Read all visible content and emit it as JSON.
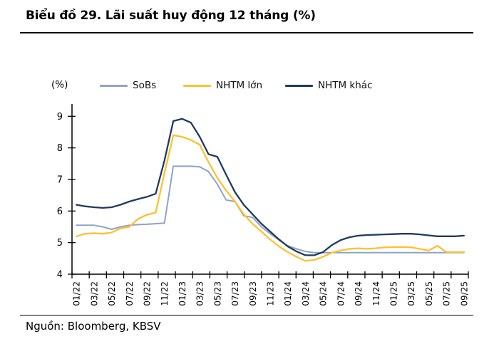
{
  "header": {
    "title": "Biểu đồ 29. Lãi suất huy động 12 tháng (%)"
  },
  "footer": {
    "source": "Nguồn: Bloomberg, KBSV"
  },
  "chart_data": {
    "type": "line",
    "title": "Biểu đồ 29. Lãi suất huy động 12 tháng (%)",
    "unit_label": "(%)",
    "xlabel": "",
    "ylabel": "(%)",
    "ylim": [
      4,
      9
    ],
    "yticks": [
      4,
      5,
      6,
      7,
      8,
      9
    ],
    "grid": false,
    "legend_position": "top",
    "x_tick_label_step": 2,
    "categories": [
      "01/22",
      "02/22",
      "03/22",
      "04/22",
      "05/22",
      "06/22",
      "07/22",
      "08/22",
      "09/22",
      "10/22",
      "11/22",
      "12/22",
      "01/23",
      "02/23",
      "03/23",
      "04/23",
      "05/23",
      "06/23",
      "07/23",
      "08/23",
      "09/23",
      "10/23",
      "11/23",
      "12/23",
      "01/24",
      "02/24",
      "03/24",
      "04/24",
      "05/24",
      "06/24",
      "07/24",
      "08/24",
      "09/24",
      "10/24",
      "11/24",
      "12/24",
      "01/25",
      "02/25",
      "03/25",
      "04/25",
      "05/25",
      "06/25",
      "07/25",
      "08/25",
      "09/25"
    ],
    "series": [
      {
        "name": "SoBs",
        "color": "#8FA3C8",
        "values": [
          5.55,
          5.55,
          5.55,
          5.5,
          5.42,
          5.5,
          5.55,
          5.57,
          5.58,
          5.6,
          5.62,
          7.42,
          7.42,
          7.42,
          7.4,
          7.25,
          6.85,
          6.35,
          6.3,
          5.85,
          5.8,
          5.5,
          5.28,
          5.08,
          4.9,
          4.8,
          4.72,
          4.68,
          4.68,
          4.68,
          4.68,
          4.68,
          4.68,
          4.68,
          4.68,
          4.68,
          4.68,
          4.68,
          4.68,
          4.68,
          4.68,
          4.68,
          4.68,
          4.68,
          4.68
        ]
      },
      {
        "name": "NHTM lớn",
        "color": "#FCC12F",
        "values": [
          5.2,
          5.28,
          5.3,
          5.28,
          5.32,
          5.45,
          5.5,
          5.75,
          5.88,
          5.95,
          7.2,
          8.4,
          8.35,
          8.25,
          8.1,
          7.55,
          7.05,
          6.65,
          6.3,
          5.9,
          5.6,
          5.35,
          5.1,
          4.88,
          4.7,
          4.55,
          4.42,
          4.45,
          4.55,
          4.68,
          4.75,
          4.8,
          4.82,
          4.8,
          4.82,
          4.85,
          4.86,
          4.86,
          4.85,
          4.8,
          4.75,
          4.9,
          4.7,
          4.7,
          4.7
        ]
      },
      {
        "name": "NHTM khác",
        "color": "#1F3A5F",
        "values": [
          6.2,
          6.15,
          6.12,
          6.1,
          6.12,
          6.2,
          6.3,
          6.38,
          6.45,
          6.55,
          7.6,
          8.85,
          8.92,
          8.8,
          8.35,
          7.8,
          7.72,
          7.15,
          6.6,
          6.2,
          5.9,
          5.6,
          5.35,
          5.1,
          4.88,
          4.72,
          4.6,
          4.6,
          4.7,
          4.92,
          5.08,
          5.17,
          5.22,
          5.24,
          5.25,
          5.26,
          5.27,
          5.28,
          5.28,
          5.26,
          5.23,
          5.2,
          5.2,
          5.2,
          5.22
        ]
      }
    ]
  }
}
